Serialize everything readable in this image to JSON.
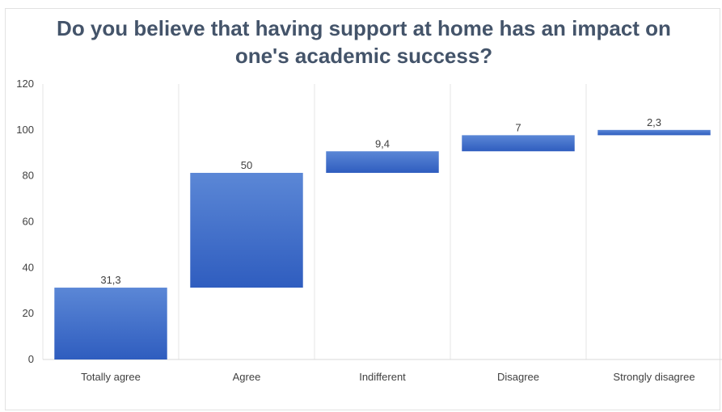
{
  "chart_data": {
    "type": "bar",
    "subtype": "waterfall",
    "title": "Do you believe that having support at home has an impact on one's academic success?",
    "categories": [
      "Totally agree",
      "Agree",
      "Indifferent",
      "Disagree",
      "Strongly disagree"
    ],
    "values": [
      31.3,
      50,
      9.4,
      7,
      2.3
    ],
    "data_labels": [
      "31,3",
      "50",
      "9,4",
      "7",
      "2,3"
    ],
    "ylim": [
      0,
      120
    ],
    "yticks": [
      0,
      20,
      40,
      60,
      80,
      100,
      120
    ],
    "xlabel": "",
    "ylabel": "",
    "grid": "vertical category separators",
    "legend": "none",
    "bar_color": "#4472c4",
    "bar_color_dark": "#2f5dbf"
  }
}
